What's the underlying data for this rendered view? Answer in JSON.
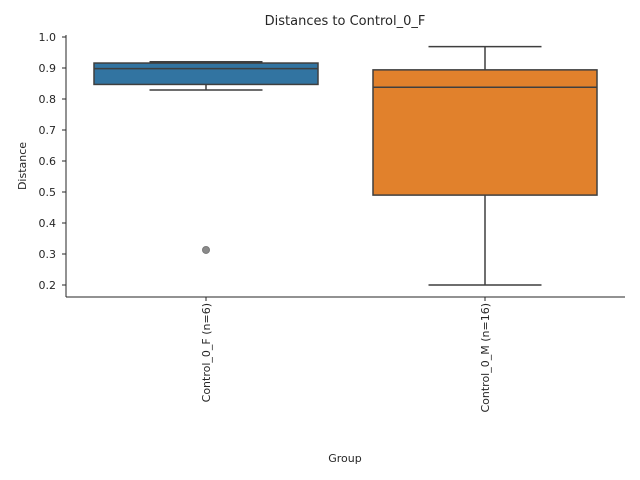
{
  "chart_data": {
    "type": "box",
    "title": "Distances to Control_0_F",
    "xlabel": "Group",
    "ylabel": "Distance",
    "ylim": [
      0.157,
      1.005
    ],
    "yticks": [
      "0.2",
      "0.3",
      "0.4",
      "0.5",
      "0.6",
      "0.7",
      "0.8",
      "0.9",
      "1.0"
    ],
    "grid": false,
    "categories": [
      "Control_0_F (n=6)",
      "Control_0_M (n=16)"
    ],
    "boxes": [
      {
        "name": "Control_0_F (n=6)",
        "color": "#3274a1",
        "whisker_low": 0.829,
        "q1": 0.847,
        "median": 0.898,
        "q3": 0.916,
        "whisker_high": 0.92,
        "outliers": [
          0.313
        ]
      },
      {
        "name": "Control_0_M (n=16)",
        "color": "#e1812c",
        "whisker_low": 0.2,
        "q1": 0.49,
        "median": 0.838,
        "q3": 0.894,
        "whisker_high": 0.969,
        "outliers": []
      }
    ]
  }
}
